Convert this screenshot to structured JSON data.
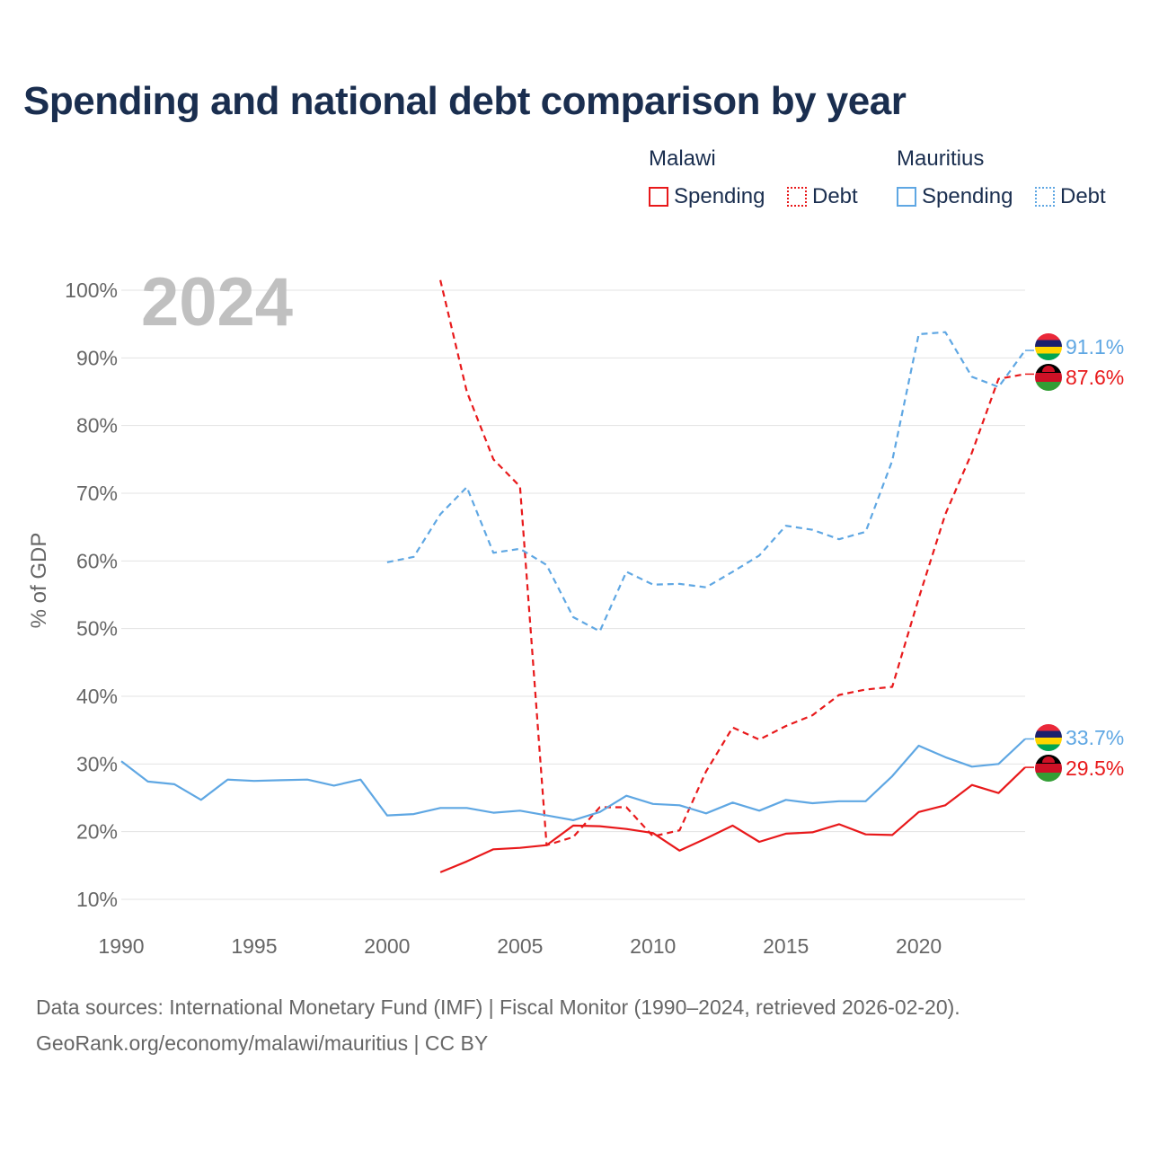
{
  "title": "Spending and national debt comparison by year",
  "legend": {
    "groups": [
      {
        "country": "Malawi",
        "spending_label": "Spending",
        "debt_label": "Debt",
        "color": "#e8191b"
      },
      {
        "country": "Mauritius",
        "spending_label": "Spending",
        "debt_label": "Debt",
        "color": "#5fa7e3"
      }
    ]
  },
  "year_watermark": "2024",
  "footer": {
    "line1": "Data sources: International Monetary Fund (IMF) | Fiscal Monitor (1990–2024, retrieved 2026-02-20).",
    "line2": "GeoRank.org/economy/malawi/mauritius | CC BY"
  },
  "chart_data": {
    "type": "line",
    "title": "Spending and national debt comparison by year",
    "xlabel": "",
    "ylabel": "% of GDP",
    "xlim": [
      1990,
      2024
    ],
    "ylim": [
      10,
      100
    ],
    "x_ticks": [
      1990,
      1995,
      2000,
      2005,
      2010,
      2015,
      2020
    ],
    "x_tick_labels": [
      "1990",
      "1995",
      "2000",
      "2005",
      "2010",
      "2015",
      "2020"
    ],
    "y_ticks": [
      10,
      20,
      30,
      40,
      50,
      60,
      70,
      80,
      90,
      100
    ],
    "y_tick_labels": [
      "10%",
      "20%",
      "30%",
      "40%",
      "50%",
      "60%",
      "70%",
      "80%",
      "90%",
      "100%"
    ],
    "grid": true,
    "series": [
      {
        "name": "Malawi Spending",
        "country": "Malawi",
        "kind": "spending",
        "color": "#e8191b",
        "dash": "solid",
        "end_label": "29.5%",
        "x": [
          2002,
          2003,
          2004,
          2005,
          2006,
          2007,
          2008,
          2009,
          2010,
          2011,
          2012,
          2013,
          2014,
          2015,
          2016,
          2017,
          2018,
          2019,
          2020,
          2021,
          2022,
          2023,
          2024
        ],
        "y": [
          14.0,
          15.6,
          17.4,
          17.6,
          18.0,
          20.9,
          20.8,
          20.4,
          19.8,
          17.2,
          19.0,
          20.9,
          18.5,
          19.7,
          19.9,
          21.1,
          19.6,
          19.5,
          22.9,
          23.9,
          26.9,
          25.7,
          29.5
        ]
      },
      {
        "name": "Malawi Debt",
        "country": "Malawi",
        "kind": "debt",
        "color": "#e8191b",
        "dash": "dashed",
        "end_label": "87.6%",
        "x": [
          2002,
          2003,
          2004,
          2005,
          2006,
          2007,
          2008,
          2009,
          2010,
          2011,
          2012,
          2013,
          2014,
          2015,
          2016,
          2017,
          2018,
          2019,
          2020,
          2021,
          2022,
          2023,
          2024
        ],
        "y": [
          101.5,
          85.0,
          75.0,
          71.0,
          18.0,
          19.2,
          23.6,
          23.6,
          19.3,
          20.2,
          28.9,
          35.4,
          33.6,
          35.6,
          37.2,
          40.2,
          41.0,
          41.4,
          54.5,
          66.9,
          76.0,
          86.9,
          87.6
        ]
      },
      {
        "name": "Mauritius Spending",
        "country": "Mauritius",
        "kind": "spending",
        "color": "#5fa7e3",
        "dash": "solid",
        "end_label": "33.7%",
        "x": [
          1990,
          1991,
          1992,
          1993,
          1994,
          1995,
          1996,
          1997,
          1998,
          1999,
          2000,
          2001,
          2002,
          2003,
          2004,
          2005,
          2006,
          2007,
          2008,
          2009,
          2010,
          2011,
          2012,
          2013,
          2014,
          2015,
          2016,
          2017,
          2018,
          2019,
          2020,
          2021,
          2022,
          2023,
          2024
        ],
        "y": [
          30.4,
          27.4,
          27.0,
          24.7,
          27.7,
          27.5,
          27.6,
          27.7,
          26.8,
          27.7,
          22.4,
          22.6,
          23.5,
          23.5,
          22.8,
          23.1,
          22.4,
          21.7,
          22.9,
          25.3,
          24.1,
          23.9,
          22.7,
          24.3,
          23.1,
          24.7,
          24.2,
          24.5,
          24.5,
          28.2,
          32.7,
          31.0,
          29.6,
          30.0,
          33.7
        ]
      },
      {
        "name": "Mauritius Debt",
        "country": "Mauritius",
        "kind": "debt",
        "color": "#5fa7e3",
        "dash": "dashed",
        "end_label": "91.1%",
        "x": [
          2000,
          2001,
          2002,
          2003,
          2004,
          2005,
          2006,
          2007,
          2008,
          2009,
          2010,
          2011,
          2012,
          2013,
          2014,
          2015,
          2016,
          2017,
          2018,
          2019,
          2020,
          2021,
          2022,
          2023,
          2024
        ],
        "y": [
          59.8,
          60.6,
          66.9,
          70.9,
          61.2,
          61.8,
          59.4,
          51.7,
          49.6,
          58.4,
          56.5,
          56.6,
          56.1,
          58.4,
          60.8,
          65.2,
          64.6,
          63.2,
          64.3,
          74.8,
          93.5,
          93.8,
          87.2,
          85.7,
          91.1
        ]
      }
    ]
  }
}
